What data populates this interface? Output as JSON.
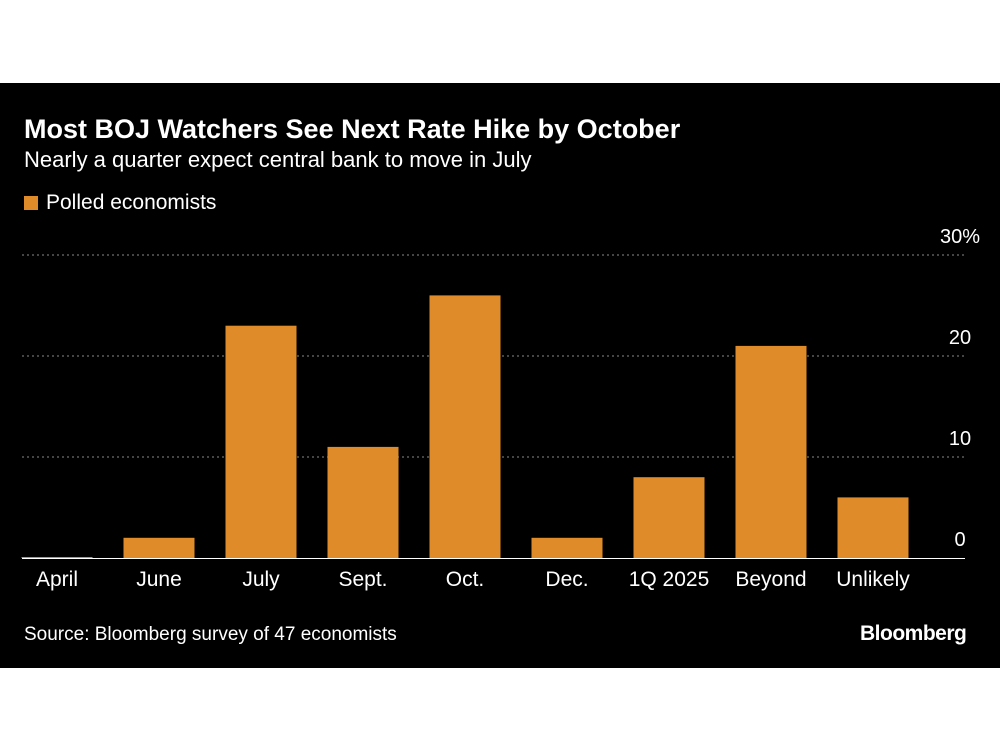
{
  "chart_data": {
    "type": "bar",
    "title": "Most BOJ Watchers See Next Rate Hike by October",
    "subtitle": "Nearly a quarter expect central bank to move in July",
    "legend": [
      {
        "name": "Polled economists",
        "color": "#e08b2a"
      }
    ],
    "legend_position": "top-left",
    "categories": [
      "April",
      "June",
      "July",
      "Sept.",
      "Oct.",
      "Dec.",
      "1Q 2025",
      "Beyond",
      "Unlikely"
    ],
    "series": [
      {
        "name": "Polled economists",
        "values": [
          0,
          2,
          23,
          11,
          26,
          2,
          8,
          21,
          6
        ]
      }
    ],
    "y_ticks": [
      {
        "value": 30,
        "label": "30%"
      },
      {
        "value": 20,
        "label": "20"
      },
      {
        "value": 10,
        "label": "10"
      },
      {
        "value": 0,
        "label": "0"
      }
    ],
    "ylim": [
      0,
      30
    ],
    "grid": true,
    "y_axis_side": "right",
    "bar_color": "#e08b2a",
    "source": "Source: Bloomberg survey of 47 economists",
    "brand": "Bloomberg"
  }
}
